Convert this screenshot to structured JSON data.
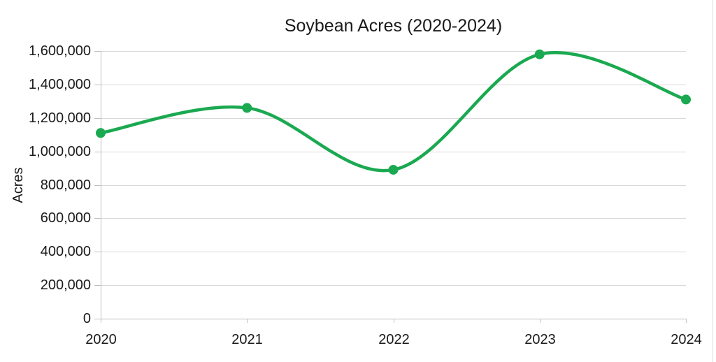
{
  "chart_data": {
    "type": "line",
    "title": "Soybean Acres (2020-2024)",
    "xlabel": "",
    "ylabel": "Acres",
    "categories": [
      "2020",
      "2021",
      "2022",
      "2023",
      "2024"
    ],
    "values": [
      1110000,
      1260000,
      890000,
      1580000,
      1310000
    ],
    "ylim": [
      0,
      1600000
    ],
    "y_ticks": [
      0,
      200000,
      400000,
      600000,
      800000,
      1000000,
      1200000,
      1400000,
      1600000
    ],
    "y_tick_labels": [
      "0",
      "200,000",
      "400,000",
      "600,000",
      "800,000",
      "1,000,000",
      "1,200,000",
      "1,400,000",
      "1,600,000"
    ],
    "grid": "horizontal",
    "legend": "none",
    "smooth": true,
    "markers": true,
    "line_color": "#1aa950"
  },
  "colors": {
    "line": "#1aa950",
    "gridline": "#d9d9d9",
    "axis": "#bfbfbf",
    "text": "#1a1a1a",
    "background": "#ffffff"
  }
}
